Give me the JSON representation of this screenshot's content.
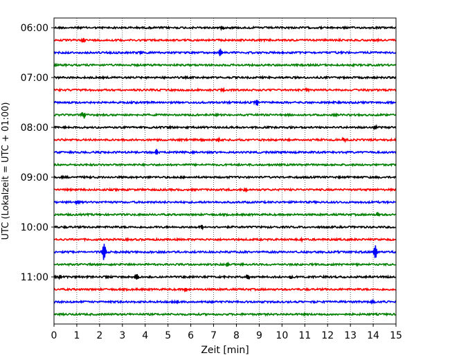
{
  "chart_data": {
    "type": "line",
    "title": "",
    "xlabel": "Zeit  [min]",
    "ylabel": "UTC (Lokalzeit = UTC + 01:00)",
    "xlim": [
      0,
      15
    ],
    "x_ticks": [
      "0",
      "1",
      "2",
      "3",
      "4",
      "5",
      "6",
      "7",
      "8",
      "9",
      "10",
      "11",
      "12",
      "13",
      "14",
      "15"
    ],
    "y_ticks": [
      {
        "label": "06:00",
        "row": 0
      },
      {
        "label": "07:00",
        "row": 4
      },
      {
        "label": "08:00",
        "row": 8
      },
      {
        "label": "09:00",
        "row": 12
      },
      {
        "label": "10:00",
        "row": 16
      },
      {
        "label": "11:00",
        "row": 20
      }
    ],
    "grid": "vertical dotted lines at each minute",
    "trace_colors": [
      "#000000",
      "#ff0000",
      "#0000ff",
      "#008000"
    ],
    "traces": [
      {
        "start": "06:00",
        "color": "#000000",
        "events": [
          {
            "minute": 7.4,
            "amp": 0.3
          }
        ]
      },
      {
        "start": "06:15",
        "color": "#ff0000",
        "events": [
          {
            "minute": 1.3,
            "amp": 0.25
          }
        ]
      },
      {
        "start": "06:30",
        "color": "#0000ff",
        "events": [
          {
            "minute": 7.3,
            "amp": 0.55
          },
          {
            "minute": 3.8,
            "amp": 0.2
          }
        ]
      },
      {
        "start": "06:45",
        "color": "#008000",
        "events": []
      },
      {
        "start": "07:00",
        "color": "#000000",
        "events": []
      },
      {
        "start": "07:15",
        "color": "#ff0000",
        "events": [
          {
            "minute": 7.4,
            "amp": 0.3
          },
          {
            "minute": 11.1,
            "amp": 0.25
          }
        ]
      },
      {
        "start": "07:30",
        "color": "#0000ff",
        "events": [
          {
            "minute": 8.9,
            "amp": 0.5
          }
        ]
      },
      {
        "start": "07:45",
        "color": "#008000",
        "events": [
          {
            "minute": 1.3,
            "amp": 0.5
          }
        ]
      },
      {
        "start": "08:00",
        "color": "#000000",
        "events": [
          {
            "minute": 14.1,
            "amp": 0.35
          },
          {
            "minute": 5.1,
            "amp": 0.2
          }
        ]
      },
      {
        "start": "08:15",
        "color": "#ff0000",
        "events": [
          {
            "minute": 7.2,
            "amp": 0.3
          },
          {
            "minute": 12.7,
            "amp": 0.25
          }
        ]
      },
      {
        "start": "08:30",
        "color": "#0000ff",
        "events": [
          {
            "minute": 4.5,
            "amp": 0.45
          }
        ]
      },
      {
        "start": "08:45",
        "color": "#008000",
        "events": []
      },
      {
        "start": "09:00",
        "color": "#000000",
        "events": [
          {
            "minute": 1.6,
            "amp": 0.2
          }
        ]
      },
      {
        "start": "09:15",
        "color": "#ff0000",
        "events": [
          {
            "minute": 8.4,
            "amp": 0.3
          }
        ]
      },
      {
        "start": "09:30",
        "color": "#0000ff",
        "events": [
          {
            "minute": 1.0,
            "amp": 0.35
          }
        ]
      },
      {
        "start": "09:45",
        "color": "#008000",
        "events": [
          {
            "minute": 14.2,
            "amp": 0.3
          }
        ]
      },
      {
        "start": "10:00",
        "color": "#000000",
        "events": [
          {
            "minute": 6.5,
            "amp": 0.25
          }
        ]
      },
      {
        "start": "10:15",
        "color": "#ff0000",
        "events": [
          {
            "minute": 10.9,
            "amp": 0.2
          }
        ]
      },
      {
        "start": "10:30",
        "color": "#0000ff",
        "events": [
          {
            "minute": 2.2,
            "amp": 1.5
          },
          {
            "minute": 14.1,
            "amp": 1.0
          },
          {
            "minute": 12.5,
            "amp": 0.2
          }
        ]
      },
      {
        "start": "10:45",
        "color": "#008000",
        "events": [
          {
            "minute": 7.6,
            "amp": 0.3
          },
          {
            "minute": 8.3,
            "amp": 0.2
          }
        ]
      },
      {
        "start": "11:00",
        "color": "#000000",
        "events": [
          {
            "minute": 3.6,
            "amp": 0.5
          },
          {
            "minute": 8.5,
            "amp": 0.4
          },
          {
            "minute": 0.3,
            "amp": 0.3
          },
          {
            "minute": 10.4,
            "amp": 0.2
          }
        ]
      },
      {
        "start": "11:15",
        "color": "#ff0000",
        "events": [
          {
            "minute": 5.8,
            "amp": 0.35
          }
        ]
      },
      {
        "start": "11:30",
        "color": "#0000ff",
        "events": [
          {
            "minute": 5.4,
            "amp": 0.3
          },
          {
            "minute": 14.0,
            "amp": 0.25
          }
        ]
      },
      {
        "start": "11:45",
        "color": "#008000",
        "events": []
      }
    ]
  }
}
